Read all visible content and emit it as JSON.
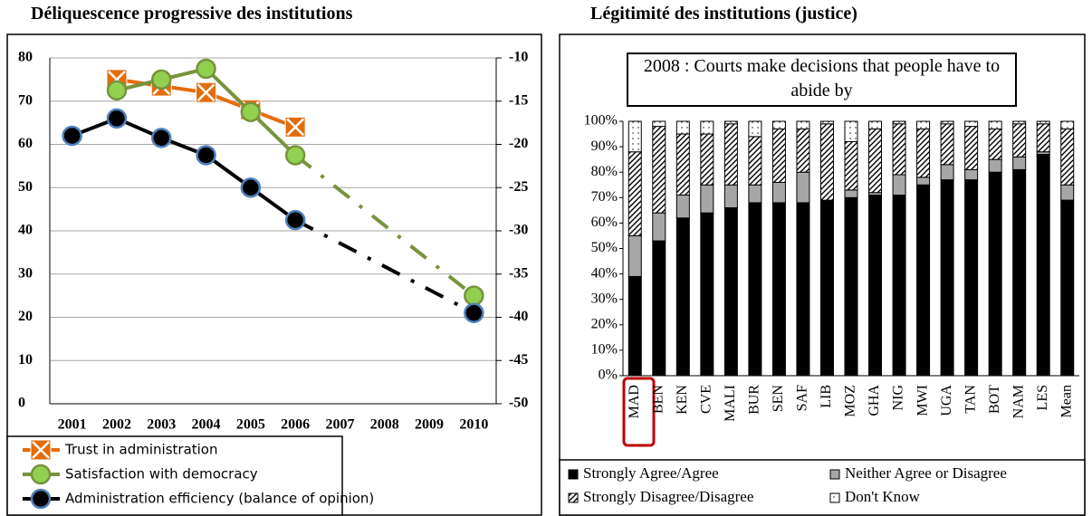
{
  "chart_data": [
    {
      "type": "line",
      "title": "Déliquescence progressive des institutions",
      "categories": [
        "2001",
        "2002",
        "2003",
        "2004",
        "2005",
        "2006",
        "2007",
        "2008",
        "2009",
        "2010"
      ],
      "ylim": [
        0,
        80
      ],
      "yticks": [
        0,
        10,
        20,
        30,
        40,
        50,
        60,
        70,
        80
      ],
      "y2lim": [
        -50,
        -10
      ],
      "y2ticks": [
        -50,
        -45,
        -40,
        -35,
        -30,
        -25,
        -20,
        -15,
        -10
      ],
      "grid": true,
      "gap_style": "dash-dot",
      "series": [
        {
          "name": "Trust in administration",
          "color": "#e46c0a",
          "marker": "square-x",
          "values": [
            null,
            75,
            73.5,
            72,
            68,
            64,
            null,
            null,
            null,
            null
          ]
        },
        {
          "name": "Satisfaction with democracy",
          "color": "#77933c",
          "marker": "circle",
          "values": [
            null,
            72.5,
            75,
            77.5,
            67.5,
            57.5,
            null,
            null,
            null,
            25
          ]
        },
        {
          "name": "Administration efficiency (balance of opinion)",
          "color": "#000000",
          "marker": "circle",
          "axis": "y2",
          "values": [
            -19,
            -17,
            -19.25,
            -21.25,
            -25,
            -28.75,
            null,
            null,
            null,
            -39.5
          ]
        }
      ]
    },
    {
      "type": "stacked_bar",
      "title": "Légitimité des institutions (justice)",
      "subtitle": "2008 : Courts make decisions that people have to abide by",
      "categories": [
        "MAD",
        "BEN",
        "KEN",
        "CVE",
        "MALI",
        "BUR",
        "SEN",
        "SAF",
        "LIB",
        "MOZ",
        "GHA",
        "NIG",
        "MWI",
        "UGA",
        "TAN",
        "BOT",
        "NAM",
        "LES",
        "Mean"
      ],
      "ylim": [
        0,
        100
      ],
      "yticks": [
        {
          "value": 0,
          "label": "0%"
        },
        {
          "value": 10,
          "label": "10%"
        },
        {
          "value": 20,
          "label": "20%"
        },
        {
          "value": 30,
          "label": "30%"
        },
        {
          "value": 40,
          "label": "40%"
        },
        {
          "value": 50,
          "label": "50%"
        },
        {
          "value": 60,
          "label": "60%"
        },
        {
          "value": 70,
          "label": "70%"
        },
        {
          "value": 80,
          "label": "80%"
        },
        {
          "value": 90,
          "label": "90%"
        },
        {
          "value": 100,
          "label": "100%"
        }
      ],
      "series": [
        {
          "name": "Strongly Agree/Agree",
          "color": "#000000",
          "pattern": "solid",
          "values": [
            39,
            53,
            62,
            64,
            66,
            68,
            68,
            68,
            69,
            70,
            71,
            71,
            75,
            77,
            77,
            80,
            81,
            87,
            69
          ]
        },
        {
          "name": "Neither Agree or Disagree",
          "color": "#a6a6a6",
          "pattern": "solid",
          "values": [
            16,
            11,
            9,
            11,
            9,
            7,
            8,
            12,
            0,
            3,
            1,
            8,
            3,
            6,
            4,
            5,
            5,
            1,
            6
          ]
        },
        {
          "name": "Strongly Disagree/Disagree",
          "color": "#ffffff",
          "pattern": "hatch",
          "values": [
            33,
            34,
            24,
            20,
            24,
            19,
            21,
            17,
            30,
            19,
            25,
            20,
            19,
            16,
            17,
            12,
            13,
            11,
            22
          ]
        },
        {
          "name": "Don't Know",
          "color": "#ffffff",
          "pattern": "dots",
          "values": [
            12,
            2,
            5,
            5,
            1,
            6,
            3,
            3,
            1,
            8,
            3,
            1,
            3,
            1,
            2,
            3,
            1,
            1,
            3
          ]
        }
      ]
    }
  ]
}
